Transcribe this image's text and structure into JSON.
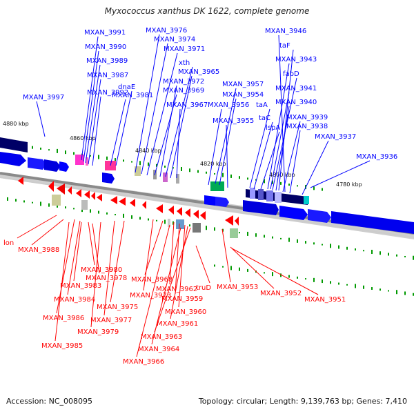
{
  "title": "Myxococcus xanthus DK 1622, complete genome",
  "footer": {
    "accession": "Accession: NC_008095",
    "stats": "Topology: circular; Length: 9,139,763 bp; Genes: 7,410"
  },
  "colors": {
    "forward": "#0000ff",
    "reverse": "#ff0000",
    "backbone": "#888888",
    "gc_tick": "#009900",
    "dark_segment": "#000066"
  },
  "ruler": [
    "4880 kbp",
    "4860 kbp",
    "4840 kbp",
    "4820 kbp",
    "4800 kbp",
    "4780 kbp"
  ],
  "forward_genes": [
    "MXAN_3991",
    "MXAN_3990",
    "MXAN_3989",
    "MXAN_3987",
    "MXAN_3992",
    "MXAN_3997",
    "MXAN_3976",
    "MXAN_3974",
    "MXAN_3971",
    "xth",
    "MXAN_3965",
    "MXAN_3972",
    "MXAN_3969",
    "MXAN_3967",
    "dnaE",
    "MXAN_3981",
    "MXAN_3957",
    "MXAN_3954",
    "MXAN_3956",
    "MXAN_3955",
    "MXAN_3946",
    "taF",
    "MXAN_3943",
    "fabD",
    "MXAN_3941",
    "MXAN_3940",
    "taA",
    "taC",
    "MXAN_3939",
    "lspA",
    "MXAN_3938",
    "MXAN_3937",
    "MXAN_3936"
  ],
  "reverse_genes": [
    "lon",
    "MXAN_3988",
    "MXAN_3980",
    "MXAN_3978",
    "MXAN_3983",
    "MXAN_3984",
    "MXAN_3975",
    "MXAN_3986",
    "MXAN_3977",
    "MXAN_3979",
    "MXAN_3985",
    "MXAN_3973",
    "MXAN_3968",
    "MXAN_3962",
    "MXAN_3959",
    "MXAN_3960",
    "MXAN_3961",
    "MXAN_3963",
    "MXAN_3964",
    "MXAN_3966",
    "truD",
    "MXAN_3953",
    "MXAN_3952",
    "MXAN_3951"
  ]
}
